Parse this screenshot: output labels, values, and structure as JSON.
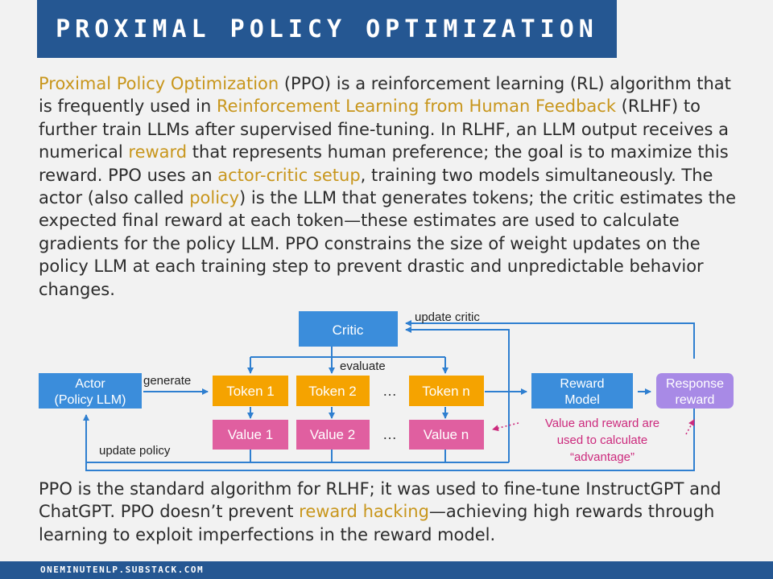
{
  "title": "PROXIMAL POLICY OPTIMIZATION",
  "intro": [
    {
      "t": "Proximal Policy Optimization",
      "h": true
    },
    {
      "t": " (PPO) is a reinforcement learning (RL) algorithm that is frequently used in ",
      "h": false
    },
    {
      "t": "Reinforcement Learning from Human Feedback",
      "h": true
    },
    {
      "t": " (RLHF) to further train LLMs after supervised fine-tuning. In RLHF, an LLM output receives a numerical ",
      "h": false
    },
    {
      "t": "reward",
      "h": true
    },
    {
      "t": " that represents human preference; the goal is to maximize this reward. PPO uses an ",
      "h": false
    },
    {
      "t": "actor-critic setup",
      "h": true
    },
    {
      "t": ", training two models simultaneously. The actor (also called ",
      "h": false
    },
    {
      "t": "policy",
      "h": true
    },
    {
      "t": ") is the LLM that generates tokens; the critic estimates the expected final reward at each token—these estimates are used to calculate gradients for the policy LLM. PPO constrains the size of weight updates on the policy LLM at each training step to prevent drastic and unpredictable behavior changes.",
      "h": false
    }
  ],
  "outro": [
    {
      "t": "PPO is the standard algorithm for RLHF; it was used to fine-tune InstructGPT and ChatGPT. PPO doesn’t prevent ",
      "h": false
    },
    {
      "t": "reward hacking",
      "h": true
    },
    {
      "t": "—achieving high rewards through learning to exploit imperfections in the reward model.",
      "h": false
    }
  ],
  "diagram": {
    "critic": "Critic",
    "actor": [
      "Actor",
      "(Policy LLM)"
    ],
    "tokens": [
      "Token 1",
      "Token 2",
      "Token n"
    ],
    "values": [
      "Value 1",
      "Value 2",
      "Value n"
    ],
    "ellipsis": "…",
    "reward_model": [
      "Reward",
      "Model"
    ],
    "response_reward": [
      "Response",
      "reward"
    ],
    "label_update_critic": "update critic",
    "label_evaluate": "evaluate",
    "label_generate": "generate",
    "label_update_policy": "update policy",
    "note": [
      "Value and reward are",
      "used to calculate",
      "“advantage”"
    ]
  },
  "footer": "ONEMINUTENLP.SUBSTACK.COM",
  "colors": {
    "title_bg": "#255792",
    "highlight": "#c8961c",
    "blue_box": "#3b8ddb",
    "token_box": "#f5a300",
    "value_box": "#e05fa0",
    "reward_box": "#a88ae6",
    "arrow": "#2f7fd0",
    "note": "#cc2a7d"
  }
}
